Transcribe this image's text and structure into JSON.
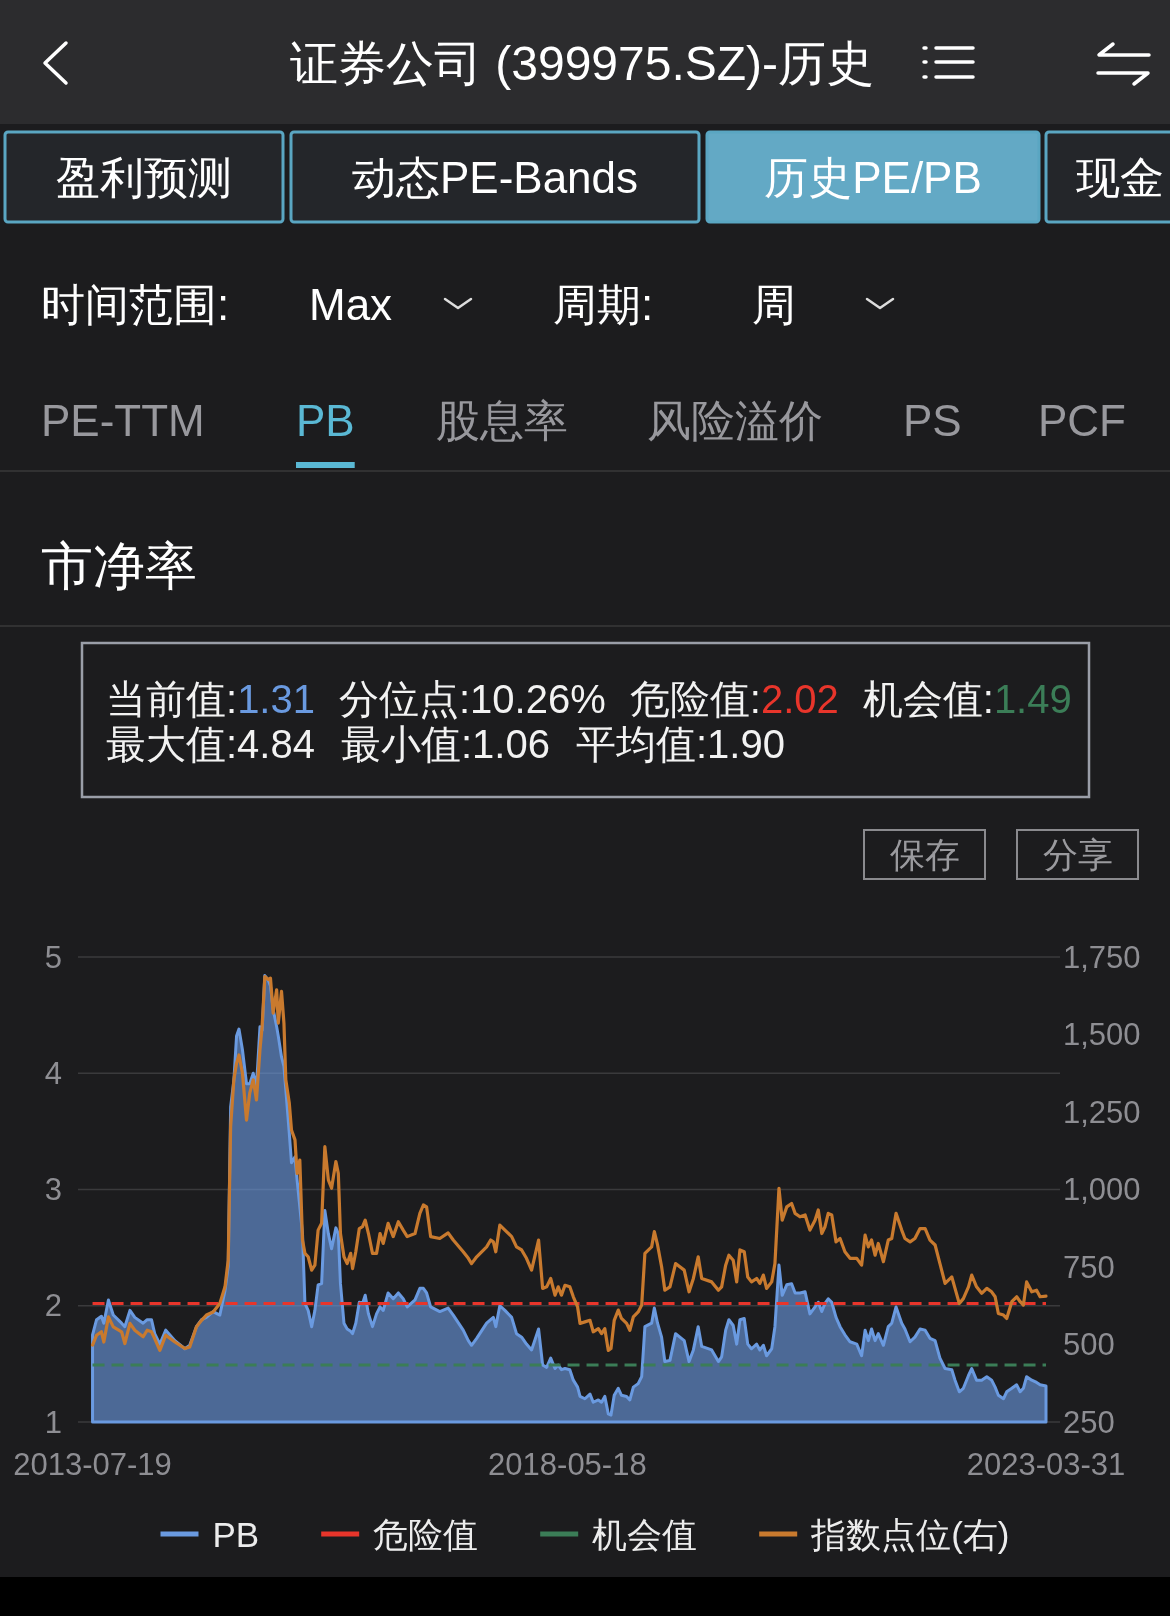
{
  "chart_data": {
    "type": "area",
    "title": "证券公司 (399975.SZ)-历史",
    "subtitle": "市净率",
    "annotations": [
      "盈利预测",
      "动态PE-Bands",
      "历史PE/PB",
      "现金",
      "时间范围:",
      "Max",
      "周期:",
      "周",
      "PE-TTM",
      "PB",
      "股息率",
      "风险溢价",
      "PS",
      "PCF",
      "当前值:1.31",
      "分位点:10.26%",
      "危险值:2.02",
      "机会值:1.49",
      "最大值:4.84",
      "最小值:1.06",
      "平均值:1.90",
      "保存",
      "分享"
    ],
    "x": [
      "2013-07-19",
      "2013-08-03",
      "2013-08-21",
      "2013-08-30",
      "2013-09-16",
      "2013-10-04",
      "2013-11-04",
      "2013-11-16",
      "2013-12-05",
      "2013-12-23",
      "2014-01-23",
      "2014-02-07",
      "2014-02-23",
      "2014-03-07",
      "2014-03-26",
      "2014-04-17",
      "2014-05-21",
      "2014-06-27",
      "2014-07-15",
      "2014-08-09",
      "2014-08-28",
      "2014-09-15",
      "2014-10-10",
      "2014-11-04",
      "2014-11-23",
      "2014-12-05",
      "2014-12-14",
      "2014-12-26",
      "2015-01-05",
      "2015-01-14",
      "2015-01-27",
      "2015-02-11",
      "2015-02-23",
      "2015-03-08",
      "2015-03-20",
      "2015-04-02",
      "2015-04-10",
      "2015-04-20",
      "2015-05-03",
      "2015-05-11",
      "2015-05-21",
      "2015-06-03",
      "2015-06-09",
      "2015-06-21",
      "2015-06-30",
      "2015-07-07",
      "2015-07-20",
      "2015-07-28",
      "2015-08-10",
      "2015-08-18",
      "2015-08-28",
      "2015-09-07",
      "2015-09-16",
      "2015-09-28",
      "2015-10-11",
      "2015-10-23",
      "2015-11-04",
      "2015-11-17",
      "2015-11-29",
      "2015-12-12",
      "2015-12-24",
      "2016-01-09",
      "2016-01-18",
      "2016-01-26",
      "2016-02-08",
      "2016-02-20",
      "2016-03-04",
      "2016-03-11",
      "2016-03-23",
      "2016-04-05",
      "2016-04-17",
      "2016-04-27",
      "2016-05-09",
      "2016-05-24",
      "2016-06-08",
      "2016-06-21",
      "2016-07-03",
      "2016-07-21",
      "2016-08-09",
      "2016-08-28",
      "2016-09-15",
      "2016-09-30",
      "2016-10-29",
      "2016-11-16",
      "2016-11-29",
      "2016-12-11",
      "2016-12-26",
      "2017-01-29",
      "2017-03-01",
      "2017-03-20",
      "2017-04-26",
      "2017-05-15",
      "2017-05-27",
      "2017-06-15",
      "2017-07-22",
      "2017-08-06",
      "2017-08-16",
      "2017-08-25",
      "2017-09-09",
      "2017-09-28",
      "2017-10-23",
      "2017-11-10",
      "2017-11-29",
      "2017-12-17",
      "2018-01-05",
      "2018-01-31",
      "2018-02-15",
      "2018-03-02",
      "2018-03-17",
      "2018-04-02",
      "2018-04-14",
      "2018-04-26",
      "2018-05-09",
      "2018-05-27",
      "2018-06-09",
      "2018-06-25",
      "2018-07-04",
      "2018-07-22",
      "2018-08-10",
      "2018-08-22",
      "2018-09-10",
      "2018-09-22",
      "2018-10-04",
      "2018-10-17",
      "2018-10-27",
      "2018-11-08",
      "2018-11-23",
      "2018-12-05",
      "2018-12-24",
      "2019-01-05",
      "2019-01-18",
      "2019-02-05",
      "2019-02-18",
      "2019-03-02",
      "2019-03-27",
      "2019-04-06",
      "2019-04-18",
      "2019-05-03",
      "2019-05-15",
      "2019-06-03",
      "2019-06-24",
      "2019-07-26",
      "2019-08-13",
      "2019-08-29",
      "2019-09-16",
      "2019-09-29",
      "2019-11-05",
      "2019-11-30",
      "2019-12-12",
      "2019-12-27",
      "2020-01-08",
      "2020-01-24",
      "2020-02-06",
      "2020-02-18",
      "2020-03-05",
      "2020-03-18",
      "2020-04-01",
      "2020-04-20",
      "2020-05-02",
      "2020-05-15",
      "2020-05-27",
      "2020-06-15",
      "2020-06-27",
      "2020-07-12",
      "2020-07-24",
      "2020-08-10",
      "2020-08-28",
      "2020-09-10",
      "2020-09-28",
      "2020-10-17",
      "2020-11-04",
      "2020-11-23",
      "2020-12-05",
      "2020-12-18",
      "2020-12-30",
      "2021-01-11",
      "2021-01-24",
      "2021-02-09",
      "2021-02-24",
      "2021-03-14",
      "2021-04-02",
      "2021-04-27",
      "2021-05-15",
      "2021-05-28",
      "2021-06-09",
      "2021-06-21",
      "2021-07-04",
      "2021-07-16",
      "2021-08-04",
      "2021-08-22",
      "2021-09-04",
      "2021-09-20",
      "2021-10-11",
      "2021-10-23",
      "2021-11-11",
      "2021-11-29",
      "2021-12-18",
      "2022-01-06",
      "2022-01-24",
      "2022-02-12",
      "2022-03-02",
      "2022-03-21",
      "2022-04-15",
      "2022-04-27",
      "2022-05-13",
      "2022-05-28",
      "2022-06-16",
      "2022-06-28",
      "2022-07-16",
      "2022-08-04",
      "2022-08-23",
      "2022-09-10",
      "2022-09-23",
      "2022-10-05",
      "2022-10-24",
      "2022-11-05",
      "2022-11-24",
      "2022-12-12",
      "2022-12-25",
      "2023-01-06",
      "2023-01-18",
      "2023-02-06",
      "2023-02-24",
      "2023-03-09",
      "2023-03-31"
    ],
    "series": [
      {
        "name": "PB",
        "type": "area",
        "color": "#6a9ae0",
        "values": [
          1.75,
          1.88,
          1.91,
          1.85,
          2.05,
          1.92,
          1.85,
          1.82,
          1.96,
          1.9,
          1.85,
          1.88,
          1.88,
          1.76,
          1.67,
          1.79,
          1.7,
          1.63,
          1.66,
          1.82,
          1.88,
          1.9,
          1.95,
          1.92,
          2.13,
          2.34,
          3.71,
          3.94,
          4.32,
          4.38,
          4.2,
          3.91,
          3.91,
          4.0,
          3.89,
          4.4,
          4.37,
          4.84,
          4.8,
          4.75,
          4.55,
          4.4,
          4.32,
          4.14,
          4.06,
          3.86,
          3.48,
          3.23,
          3.28,
          3.08,
          2.85,
          2.62,
          2.02,
          1.96,
          1.82,
          1.96,
          2.18,
          2.19,
          2.82,
          2.62,
          2.49,
          2.67,
          2.62,
          2.19,
          1.85,
          1.8,
          1.78,
          1.76,
          1.85,
          2.03,
          2.02,
          2.09,
          1.93,
          1.82,
          1.93,
          1.99,
          1.96,
          2.11,
          2.06,
          2.11,
          2.06,
          1.99,
          2.05,
          2.15,
          2.15,
          2.11,
          1.99,
          1.95,
          1.98,
          1.92,
          1.79,
          1.7,
          1.66,
          1.72,
          1.85,
          1.88,
          1.9,
          1.82,
          2.0,
          1.96,
          1.9,
          1.76,
          1.73,
          1.67,
          1.62,
          1.8,
          1.49,
          1.47,
          1.55,
          1.46,
          1.49,
          1.45,
          1.46,
          1.45,
          1.36,
          1.3,
          1.22,
          1.2,
          1.24,
          1.17,
          1.19,
          1.17,
          1.22,
          1.07,
          1.06,
          1.23,
          1.29,
          1.23,
          1.22,
          1.19,
          1.3,
          1.33,
          1.39,
          1.82,
          1.85,
          1.98,
          1.85,
          1.73,
          1.52,
          1.53,
          1.76,
          1.7,
          1.52,
          1.62,
          1.82,
          1.65,
          1.62,
          1.52,
          1.56,
          1.79,
          1.88,
          1.83,
          1.67,
          1.88,
          1.89,
          1.67,
          1.63,
          1.67,
          1.62,
          1.66,
          1.57,
          1.63,
          1.82,
          2.35,
          2.09,
          2.18,
          2.19,
          2.11,
          2.11,
          2.12,
          1.93,
          1.99,
          2.03,
          1.95,
          2.02,
          2.06,
          2.03,
          1.9,
          1.82,
          1.75,
          1.69,
          1.67,
          1.57,
          1.79,
          1.7,
          1.8,
          1.7,
          1.76,
          1.66,
          1.82,
          1.85,
          1.99,
          1.85,
          1.8,
          1.69,
          1.73,
          1.8,
          1.79,
          1.72,
          1.7,
          1.55,
          1.46,
          1.45,
          1.36,
          1.26,
          1.29,
          1.4,
          1.46,
          1.36,
          1.36,
          1.39,
          1.36,
          1.3,
          1.23,
          1.2,
          1.26,
          1.29,
          1.32,
          1.26,
          1.29,
          1.39,
          1.36,
          1.34,
          1.32,
          1.31
        ]
      },
      {
        "name": "指数点位(右)",
        "type": "line",
        "axis": "y2",
        "color": "#c97a2e",
        "values": [
          498,
          530,
          541,
          508,
          589,
          557,
          541,
          503,
          568,
          546,
          525,
          546,
          541,
          519,
          481,
          530,
          508,
          487,
          492,
          557,
          578,
          595,
          605,
          632,
          686,
          772,
          1203,
          1354,
          1407,
          1434,
          1375,
          1224,
          1311,
          1354,
          1289,
          1451,
          1526,
          1687,
          1677,
          1682,
          1569,
          1644,
          1537,
          1639,
          1537,
          1354,
          1278,
          1192,
          1160,
          1052,
          1095,
          837,
          794,
          783,
          740,
          756,
          869,
          891,
          1138,
          1031,
          1004,
          1090,
          1052,
          858,
          783,
          761,
          794,
          745,
          799,
          874,
          880,
          901,
          858,
          794,
          794,
          858,
          826,
          891,
          848,
          896,
          869,
          848,
          858,
          923,
          950,
          944,
          848,
          842,
          860,
          837,
          799,
          778,
          761,
          783,
          815,
          837,
          831,
          799,
          885,
          869,
          848,
          815,
          805,
          778,
          740,
          837,
          681,
          686,
          713,
          659,
          686,
          659,
          691,
          686,
          654,
          621,
          568,
          573,
          578,
          541,
          551,
          535,
          551,
          481,
          487,
          578,
          611,
          584,
          568,
          546,
          589,
          605,
          627,
          794,
          815,
          864,
          821,
          751,
          675,
          686,
          761,
          740,
          670,
          713,
          783,
          713,
          702,
          675,
          686,
          756,
          788,
          772,
          702,
          805,
          799,
          718,
          702,
          713,
          697,
          724,
          681,
          702,
          761,
          1004,
          901,
          944,
          955,
          923,
          912,
          918,
          869,
          901,
          934,
          858,
          880,
          923,
          918,
          831,
          842,
          799,
          778,
          778,
          756,
          853,
          815,
          837,
          788,
          826,
          767,
          837,
          842,
          923,
          869,
          842,
          831,
          842,
          874,
          874,
          837,
          821,
          761,
          697,
          718,
          681,
          632,
          648,
          686,
          724,
          686,
          665,
          681,
          670,
          654,
          600,
          595,
          584,
          638,
          654,
          638,
          627,
          702,
          670,
          675,
          654,
          656
        ]
      }
    ],
    "ref_lines": [
      {
        "axis": "y",
        "value": 2.02,
        "label": "危险值",
        "color": "#e8352b",
        "line_style": "dashed"
      },
      {
        "axis": "y",
        "value": 1.49,
        "label": "机会值",
        "color": "#3b7d57",
        "line_style": "dashed"
      }
    ],
    "xlim": [
      "2013-05-26",
      "2023-05-22"
    ],
    "xticks": [
      "2013-07-19",
      "2018-05-18",
      "2023-03-31"
    ],
    "ylim": [
      1,
      5
    ],
    "yticks": [
      1,
      2,
      3,
      4,
      5
    ],
    "y2lim": [
      250,
      1750
    ],
    "y2ticks": [
      250,
      500,
      750,
      {
        "value": 1000,
        "label": "1,000"
      },
      {
        "value": 1250,
        "label": "1,250"
      },
      {
        "value": 1500,
        "label": "1,500"
      },
      {
        "value": 1750,
        "label": "1,750"
      }
    ],
    "grid": "y",
    "legend": "bottom"
  }
}
